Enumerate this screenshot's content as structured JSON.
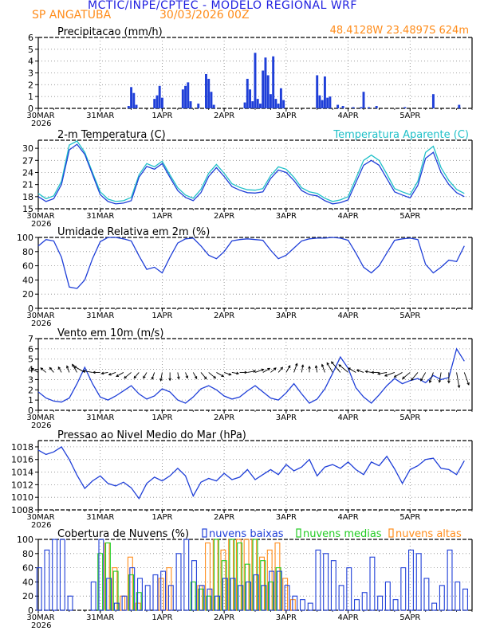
{
  "header": {
    "title": "MCTIC/INPE/CPTEC - MODELO REGIONAL WRF",
    "station": "SP ANGATUBA",
    "run_date": "30/03/2026 00Z",
    "location": "48.4128W  23.4897S  624m"
  },
  "colors": {
    "title": "#2020e0",
    "header_orange": "#ff8c1a",
    "series_blue": "#1f3fd8",
    "apparent_cyan": "#20c0c8",
    "medium_green": "#22cc22",
    "high_orange": "#ff8c1a",
    "wind_arrow": "#000000"
  },
  "time_axis": {
    "hours": 144,
    "ticks": [
      {
        "hour": 0,
        "label": "30MAR",
        "year": "2026"
      },
      {
        "hour": 24,
        "label": "31MAR"
      },
      {
        "hour": 48,
        "label": "1APR"
      },
      {
        "hour": 72,
        "label": "2APR"
      },
      {
        "hour": 96,
        "label": "3APR"
      },
      {
        "hour": 120,
        "label": "4APR"
      },
      {
        "hour": 144,
        "label": "5APR"
      }
    ]
  },
  "chart_data": [
    {
      "id": "precip",
      "type": "bar",
      "title": "Precipitacao (mm/h)",
      "ylim": [
        0,
        6
      ],
      "yticks": [
        0,
        1,
        2,
        3,
        4,
        5,
        6
      ],
      "x_hours": [
        35,
        36,
        37,
        38,
        45,
        46,
        47,
        48,
        56,
        57,
        58,
        59,
        62,
        65,
        66,
        67,
        68,
        80,
        81,
        82,
        83,
        84,
        85,
        86,
        87,
        88,
        89,
        90,
        91,
        92,
        93,
        94,
        95,
        108,
        109,
        110,
        111,
        112,
        113,
        116,
        118,
        122,
        125,
        126,
        128,
        131,
        142,
        153,
        163
      ],
      "values": [
        0.2,
        1.8,
        1.3,
        0.3,
        0.8,
        1.1,
        1.9,
        0.9,
        1.6,
        1.9,
        2.2,
        0.6,
        0.4,
        2.9,
        2.5,
        1.4,
        0.3,
        0.5,
        2.5,
        1.6,
        0.6,
        4.7,
        0.8,
        0.4,
        3.2,
        4.3,
        2.8,
        1.2,
        4.4,
        0.8,
        0.4,
        1.7,
        0.7,
        2.8,
        1.1,
        0.7,
        2.7,
        0.9,
        1.0,
        0.3,
        0.2,
        0.1,
        0.1,
        1.4,
        0.1,
        0.2,
        0.1,
        1.2,
        0.3
      ]
    },
    {
      "id": "temperature",
      "type": "line",
      "title": "2-m Temperatura (C)",
      "ylim": [
        15,
        32
      ],
      "yticks": [
        15,
        18,
        21,
        24,
        27,
        30
      ],
      "x_hours": [
        0,
        3,
        6,
        9,
        12,
        15,
        18,
        21,
        24,
        27,
        30,
        33,
        36,
        39,
        42,
        45,
        48,
        51,
        54,
        57,
        60,
        63,
        66,
        69,
        72,
        75,
        78,
        81,
        84,
        87,
        90,
        93,
        96,
        99,
        102,
        105,
        108,
        111,
        114,
        117,
        120,
        123,
        126,
        129,
        132,
        135,
        138,
        141,
        144,
        147,
        150,
        153,
        156,
        159,
        162,
        165
      ],
      "series": [
        {
          "name": "2-m Temperatura (C)",
          "values": [
            18,
            16.8,
            17.5,
            21,
            29.6,
            31,
            28.5,
            23.5,
            18.5,
            16.8,
            16.2,
            16.4,
            17,
            22.8,
            25.5,
            24.8,
            26.2,
            22.8,
            19.5,
            17.8,
            17,
            19,
            23,
            25.2,
            23,
            20.5,
            19.6,
            19,
            18.9,
            19.2,
            22.5,
            24.6,
            24,
            22,
            19.5,
            18.5,
            18.2,
            17,
            16.2,
            16.5,
            17.2,
            21.5,
            25.8,
            27,
            25.8,
            22.5,
            19.2,
            18.4,
            17.7,
            20.8,
            27.5,
            29,
            24,
            21,
            19,
            18
          ]
        },
        {
          "name": "Temperatura Aparente (C)",
          "values": [
            18.8,
            17.5,
            18.2,
            21.8,
            30.8,
            31.8,
            29,
            24,
            19.2,
            17.4,
            16.8,
            17,
            17.8,
            23.4,
            26.2,
            25.4,
            26.8,
            23.4,
            20.2,
            18.4,
            17.6,
            19.8,
            23.8,
            26,
            23.8,
            21.2,
            20.3,
            19.7,
            19.6,
            20,
            23.2,
            25.4,
            24.8,
            22.8,
            20.2,
            19.2,
            18.8,
            17.6,
            16.8,
            17.2,
            18,
            22.5,
            27,
            28.3,
            27,
            23.6,
            20,
            19.2,
            18.5,
            21.8,
            29,
            30.5,
            25.2,
            22,
            19.8,
            18.8
          ]
        }
      ],
      "legend": "Temperatura Aparente (C)"
    },
    {
      "id": "humidity",
      "type": "line",
      "title": "Umidade Relativa em 2m (%)",
      "ylim": [
        0,
        100
      ],
      "yticks": [
        0,
        20,
        40,
        60,
        80,
        100
      ],
      "x_hours": [
        0,
        3,
        6,
        9,
        12,
        15,
        18,
        21,
        24,
        27,
        30,
        33,
        36,
        39,
        42,
        45,
        48,
        51,
        54,
        57,
        60,
        63,
        66,
        69,
        72,
        75,
        78,
        81,
        84,
        87,
        90,
        93,
        96,
        99,
        102,
        105,
        108,
        111,
        114,
        117,
        120,
        123,
        126,
        129,
        132,
        135,
        138,
        141,
        144,
        147,
        150,
        153,
        156,
        159,
        162,
        165
      ],
      "series": [
        {
          "name": "Umidade Relativa em 2m (%)",
          "values": [
            88,
            97,
            95,
            72,
            30,
            28,
            40,
            70,
            94,
            100,
            100,
            98,
            95,
            74,
            55,
            58,
            50,
            72,
            92,
            98,
            99,
            88,
            75,
            70,
            80,
            95,
            97,
            98,
            97,
            96,
            82,
            70,
            75,
            85,
            95,
            98,
            99,
            99,
            100,
            99,
            96,
            78,
            58,
            50,
            60,
            78,
            96,
            98,
            99,
            97,
            62,
            50,
            58,
            68,
            66,
            88
          ]
        }
      ]
    },
    {
      "id": "wind",
      "type": "line",
      "title": "Vento em 10m (m/s)",
      "ylim": [
        0,
        7
      ],
      "yticks": [
        0,
        1,
        2,
        3,
        4,
        5,
        6,
        7
      ],
      "x_hours": [
        0,
        3,
        6,
        9,
        12,
        15,
        18,
        21,
        24,
        27,
        30,
        33,
        36,
        39,
        42,
        45,
        48,
        51,
        54,
        57,
        60,
        63,
        66,
        69,
        72,
        75,
        78,
        81,
        84,
        87,
        90,
        93,
        96,
        99,
        102,
        105,
        108,
        111,
        114,
        117,
        120,
        123,
        126,
        129,
        132,
        135,
        138,
        141,
        144,
        147,
        150,
        153,
        156,
        159,
        162,
        165
      ],
      "series": [
        {
          "name": "Vento em 10m (m/s)",
          "values": [
            1.8,
            1.2,
            0.9,
            0.8,
            1.2,
            2.6,
            4.2,
            2.6,
            1.3,
            1.0,
            1.4,
            1.9,
            2.4,
            1.6,
            1.1,
            1.4,
            2.1,
            1.8,
            1.0,
            0.7,
            1.3,
            2.1,
            2.4,
            2.0,
            1.4,
            1.1,
            1.3,
            1.9,
            2.4,
            1.8,
            1.2,
            1.0,
            1.7,
            2.6,
            1.6,
            0.7,
            1.1,
            2.1,
            3.6,
            5.2,
            4.1,
            2.2,
            1.3,
            0.7,
            1.5,
            2.4,
            3.1,
            2.6,
            2.9,
            3.1,
            2.7,
            3.4,
            3.0,
            3.2,
            6.0,
            4.8
          ]
        }
      ],
      "wind_direction_deg": [
        300,
        310,
        320,
        330,
        340,
        330,
        300,
        280,
        270,
        260,
        250,
        240,
        230,
        220,
        210,
        200,
        190,
        180,
        170,
        160,
        150,
        140,
        130,
        120,
        110,
        100,
        90,
        80,
        70,
        60,
        50,
        40,
        30,
        20,
        10,
        0,
        350,
        340,
        330,
        320,
        310,
        300,
        290,
        280,
        270,
        260,
        250,
        240,
        230,
        220,
        210,
        200,
        190,
        180,
        170,
        160
      ]
    },
    {
      "id": "pressure",
      "type": "line",
      "title": "Pressao ao Nivel Medio do Mar (hPa)",
      "ylim": [
        1008,
        1019
      ],
      "yticks": [
        1008,
        1010,
        1012,
        1014,
        1016,
        1018
      ],
      "x_hours": [
        0,
        3,
        6,
        9,
        12,
        15,
        18,
        21,
        24,
        27,
        30,
        33,
        36,
        39,
        42,
        45,
        48,
        51,
        54,
        57,
        60,
        63,
        66,
        69,
        72,
        75,
        78,
        81,
        84,
        87,
        90,
        93,
        96,
        99,
        102,
        105,
        108,
        111,
        114,
        117,
        120,
        123,
        126,
        129,
        132,
        135,
        138,
        141,
        144,
        147,
        150,
        153,
        156,
        159,
        162,
        165
      ],
      "series": [
        {
          "name": "Pressao ao Nivel Medio do Mar (hPa)",
          "values": [
            1017.5,
            1016.8,
            1017.2,
            1018,
            1016,
            1013.5,
            1011.4,
            1012.6,
            1013.4,
            1012.2,
            1011.8,
            1012.4,
            1011.5,
            1009.8,
            1012.2,
            1013.2,
            1012.6,
            1013.4,
            1014.6,
            1013.4,
            1010.2,
            1012.4,
            1013,
            1012.6,
            1013.8,
            1012.8,
            1013.2,
            1014.4,
            1012.8,
            1013.6,
            1014.4,
            1013.6,
            1015.2,
            1014.2,
            1014.8,
            1016,
            1013.4,
            1014.8,
            1015.2,
            1014.6,
            1015.6,
            1014.4,
            1013.6,
            1015.6,
            1015,
            1016.5,
            1014.5,
            1012.2,
            1014.4,
            1015,
            1016,
            1016.2,
            1014.6,
            1014.4,
            1013.6,
            1015.8
          ]
        }
      ]
    },
    {
      "id": "clouds",
      "type": "bar",
      "title": "Cobertura de Nuvens (%)",
      "ylim": [
        0,
        100
      ],
      "yticks": [
        0,
        20,
        40,
        60,
        80,
        100
      ],
      "legend": [
        "nuvens baixas",
        "nuvens medias",
        "nuvens altas"
      ],
      "x_hours": [
        0,
        3,
        6,
        9,
        12,
        15,
        18,
        21,
        24,
        27,
        30,
        33,
        36,
        39,
        42,
        45,
        48,
        51,
        54,
        57,
        60,
        63,
        66,
        69,
        72,
        75,
        78,
        81,
        84,
        87,
        90,
        93,
        96,
        99,
        102,
        105,
        108,
        111,
        114,
        117,
        120,
        123,
        126,
        129,
        132,
        135,
        138,
        141,
        144,
        147,
        150,
        153,
        156,
        159,
        162,
        165
      ],
      "series": [
        {
          "name": "nuvens baixas",
          "values": [
            60,
            85,
            100,
            100,
            20,
            0,
            0,
            40,
            100,
            45,
            10,
            20,
            60,
            45,
            35,
            50,
            55,
            35,
            80,
            100,
            70,
            35,
            30,
            20,
            45,
            45,
            35,
            40,
            50,
            35,
            55,
            55,
            35,
            20,
            15,
            10,
            85,
            80,
            70,
            35,
            60,
            15,
            25,
            75,
            20,
            40,
            15,
            60,
            85,
            80,
            45,
            10,
            35,
            85,
            40,
            30
          ]
        },
        {
          "name": "nuvens medias",
          "values": [
            0,
            0,
            0,
            0,
            0,
            0,
            0,
            0,
            80,
            95,
            55,
            0,
            50,
            25,
            0,
            0,
            0,
            0,
            0,
            0,
            40,
            30,
            20,
            100,
            70,
            100,
            95,
            65,
            100,
            70,
            40,
            60,
            0,
            0,
            0,
            0,
            0,
            0,
            0,
            0,
            0,
            0,
            0,
            0,
            0,
            0,
            0,
            0,
            0,
            0,
            0,
            0,
            0,
            0,
            0,
            0
          ]
        },
        {
          "name": "nuvens altas",
          "values": [
            0,
            0,
            0,
            0,
            0,
            0,
            0,
            0,
            0,
            95,
            60,
            20,
            75,
            10,
            0,
            0,
            45,
            60,
            0,
            0,
            0,
            35,
            95,
            100,
            85,
            100,
            100,
            100,
            100,
            75,
            85,
            95,
            45,
            15,
            0,
            0,
            0,
            0,
            0,
            0,
            0,
            0,
            0,
            0,
            0,
            0,
            0,
            0,
            0,
            0,
            0,
            0,
            0,
            0,
            0,
            0
          ]
        }
      ]
    }
  ]
}
